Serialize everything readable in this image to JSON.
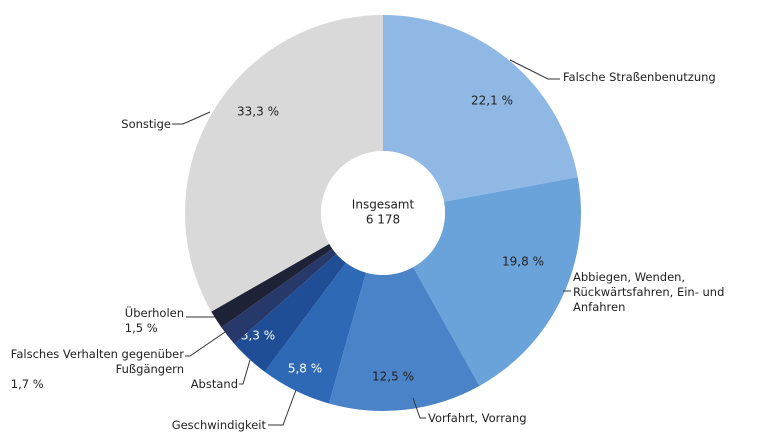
{
  "chart_data": {
    "type": "donut",
    "center_label": "Insgesamt",
    "total": {
      "value": 6178,
      "label": "6 178"
    },
    "categories": [
      "Falsche Straßenbenutzung",
      "Abbiegen, Wenden,\nRückwärtsfahren, Ein- und Anfahren",
      "Vorfahrt, Vorrang",
      "Geschwindigkeit",
      "Abstand",
      "Falsches Verhalten gegenüber\nFußgängern",
      "Überholen",
      "Sonstige"
    ],
    "values": [
      22.1,
      19.8,
      12.5,
      5.8,
      3.3,
      1.7,
      1.5,
      33.3
    ],
    "value_labels": [
      "22,1 %",
      "19,8 %",
      "12,5 %",
      "5,8 %",
      "3,3 %",
      "1,7 %",
      "1,5 %",
      "33,3 %"
    ],
    "colors": [
      "#8fb9e4",
      "#6aa3d9",
      "#4b83c8",
      "#2e69b6",
      "#1f4e96",
      "#26396a",
      "#1d2237",
      "#d9d9d9"
    ]
  }
}
